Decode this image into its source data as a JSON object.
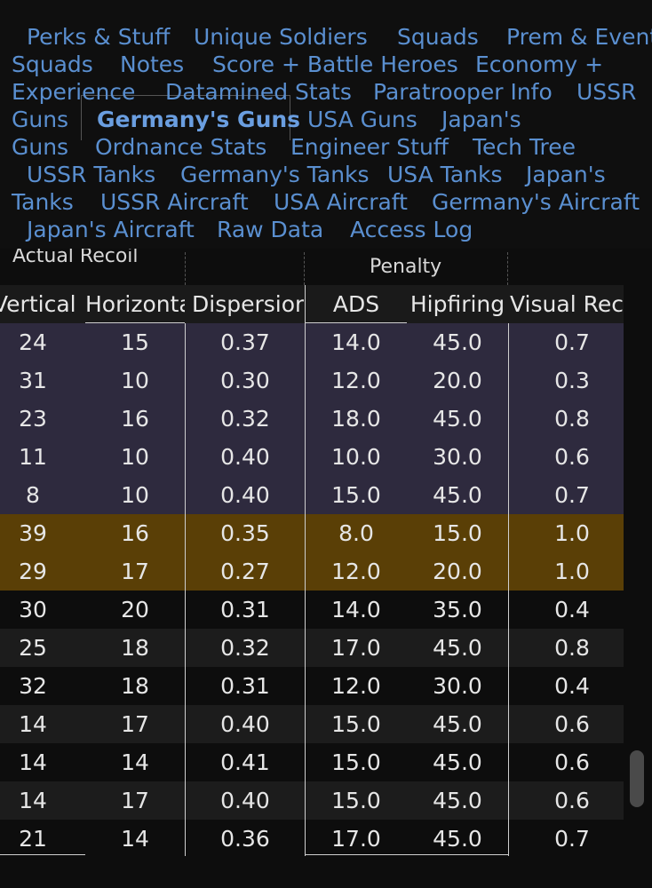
{
  "tabs": [
    {
      "label": "Perks & Stuff"
    },
    {
      "label": "Unique Soldiers"
    },
    {
      "label": "Squads"
    },
    {
      "label": "Prem & Event"
    },
    {
      "label": "Squads"
    },
    {
      "label": "Notes"
    },
    {
      "label": "Score + Battle Heroes"
    },
    {
      "label": "Economy +"
    },
    {
      "label": "Experience"
    },
    {
      "label": "Datamined Stats"
    },
    {
      "label": "Paratrooper Info"
    },
    {
      "label": "USSR"
    },
    {
      "label": "Guns"
    },
    {
      "label": "Germany's Guns"
    },
    {
      "label": "USA Guns"
    },
    {
      "label": "Japan's"
    },
    {
      "label": "Guns"
    },
    {
      "label": "Ordnance Stats"
    },
    {
      "label": "Engineer Stuff"
    },
    {
      "label": "Tech Tree"
    },
    {
      "label": "USSR Tanks"
    },
    {
      "label": "Germany's Tanks"
    },
    {
      "label": "USA Tanks"
    },
    {
      "label": "Japan's"
    },
    {
      "label": "Tanks"
    },
    {
      "label": "USSR Aircraft"
    },
    {
      "label": "USA Aircraft"
    },
    {
      "label": "Germany's Aircraft"
    },
    {
      "label": "Japan's Aircraft"
    },
    {
      "label": "Raw Data"
    },
    {
      "label": "Access Log"
    }
  ],
  "table": {
    "partial_header": "Actual Recoil",
    "group_penalty": "Penalty",
    "columns": [
      "Vertical",
      "Horizontal",
      "Dispersion",
      "ADS",
      "Hipfiring",
      "Visual Recoil"
    ],
    "colors": {
      "purple": "#2e2a3e",
      "gold": "#5a3f06",
      "dark": "#0d0d0d",
      "stripe": "#1c1c1c"
    },
    "rows": [
      {
        "highlight": "purple",
        "cells": [
          "24",
          "15",
          "0.37",
          "14.0",
          "45.0",
          "0.7"
        ]
      },
      {
        "highlight": "purple",
        "cells": [
          "31",
          "10",
          "0.30",
          "12.0",
          "20.0",
          "0.3"
        ]
      },
      {
        "highlight": "purple",
        "cells": [
          "23",
          "16",
          "0.32",
          "18.0",
          "45.0",
          "0.8"
        ]
      },
      {
        "highlight": "purple",
        "cells": [
          "11",
          "10",
          "0.40",
          "10.0",
          "30.0",
          "0.6"
        ]
      },
      {
        "highlight": "purple",
        "cells": [
          "8",
          "10",
          "0.40",
          "15.0",
          "45.0",
          "0.7"
        ]
      },
      {
        "highlight": "gold",
        "cells": [
          "39",
          "16",
          "0.35",
          "8.0",
          "15.0",
          "1.0"
        ]
      },
      {
        "highlight": "gold",
        "cells": [
          "29",
          "17",
          "0.27",
          "12.0",
          "20.0",
          "1.0"
        ]
      },
      {
        "highlight": "dark",
        "cells": [
          "30",
          "20",
          "0.31",
          "14.0",
          "35.0",
          "0.4"
        ]
      },
      {
        "highlight": "stripe",
        "cells": [
          "25",
          "18",
          "0.32",
          "17.0",
          "45.0",
          "0.8"
        ]
      },
      {
        "highlight": "dark",
        "cells": [
          "32",
          "18",
          "0.31",
          "12.0",
          "30.0",
          "0.4"
        ]
      },
      {
        "highlight": "stripe",
        "cells": [
          "14",
          "17",
          "0.40",
          "15.0",
          "45.0",
          "0.6"
        ]
      },
      {
        "highlight": "dark",
        "cells": [
          "14",
          "14",
          "0.41",
          "15.0",
          "45.0",
          "0.6"
        ]
      },
      {
        "highlight": "stripe",
        "cells": [
          "14",
          "17",
          "0.40",
          "15.0",
          "45.0",
          "0.6"
        ]
      },
      {
        "highlight": "dark",
        "cells": [
          "21",
          "14",
          "0.36",
          "17.0",
          "45.0",
          "0.7"
        ]
      }
    ]
  }
}
